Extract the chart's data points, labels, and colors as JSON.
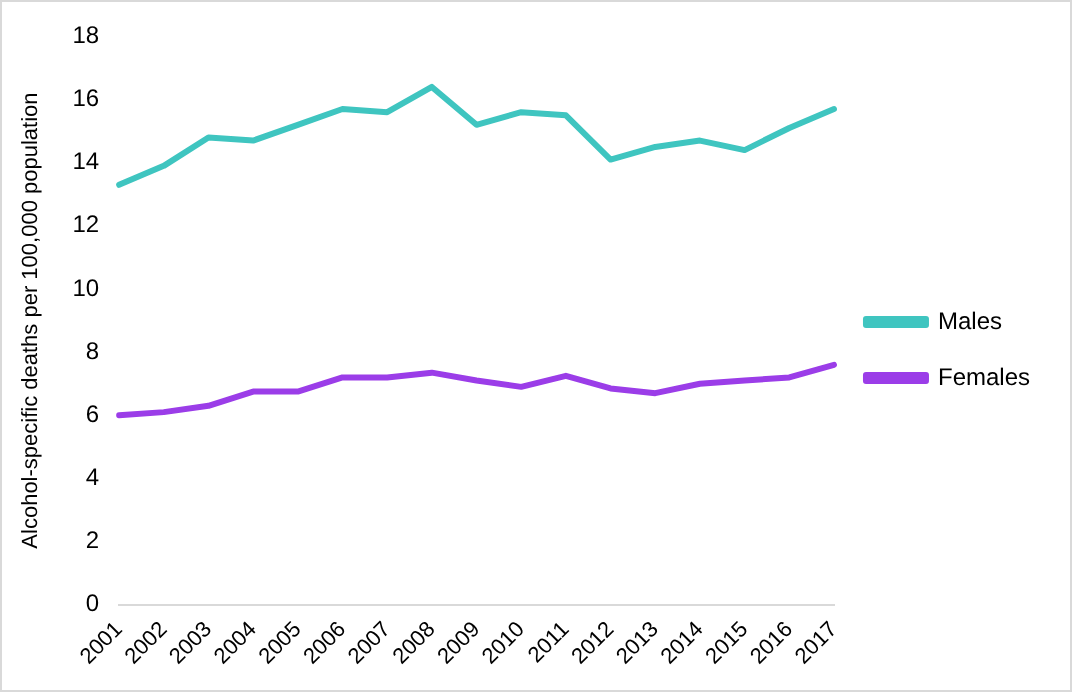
{
  "chart_data": {
    "type": "line",
    "ylabel": "Alcohol-specific deaths per 100,000 population",
    "categories": [
      "2001",
      "2002",
      "2003",
      "2004",
      "2005",
      "2006",
      "2007",
      "2008",
      "2009",
      "2010",
      "2011",
      "2012",
      "2013",
      "2014",
      "2015",
      "2016",
      "2017"
    ],
    "series": [
      {
        "name": "Males",
        "color": "#3fc5c0",
        "values": [
          13.3,
          13.9,
          14.8,
          14.7,
          15.2,
          15.7,
          15.6,
          16.4,
          15.2,
          15.6,
          15.5,
          14.1,
          14.5,
          14.7,
          14.4,
          15.1,
          15.7
        ]
      },
      {
        "name": "Females",
        "color": "#9b3de8",
        "values": [
          6.0,
          6.1,
          6.3,
          6.75,
          6.75,
          7.2,
          7.2,
          7.35,
          7.1,
          6.9,
          7.25,
          6.85,
          6.7,
          7.0,
          7.1,
          7.2,
          7.6
        ]
      }
    ],
    "ylim": [
      0,
      18
    ],
    "yticks": [
      0,
      2,
      4,
      6,
      8,
      10,
      12,
      14,
      16,
      18
    ],
    "grid": false,
    "legend": "right",
    "marker": "none",
    "line_style": "solid"
  }
}
